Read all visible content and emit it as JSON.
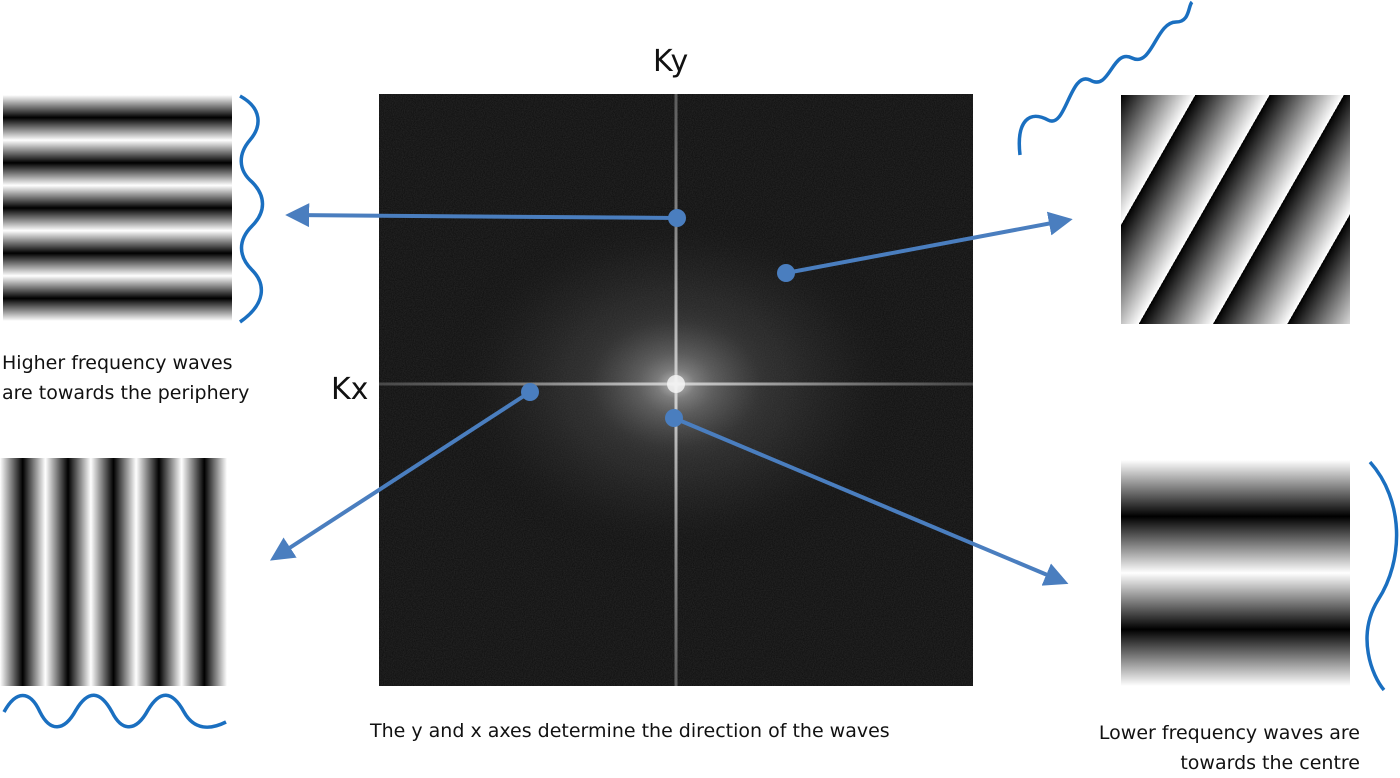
{
  "labels": {
    "ky": "Ky",
    "kx": "Kx",
    "higher_line1": "Higher frequency waves",
    "higher_line2": "are towards the periphery",
    "axes_caption": "The y and x axes determine the direction of the waves",
    "lower_line1": "Lower frequency waves are",
    "lower_line2": "towards the centre"
  },
  "colors": {
    "arrow": "#4a7ebf",
    "wave": "#1a6fc0",
    "spectrum_bg": "#0c0c0c"
  }
}
